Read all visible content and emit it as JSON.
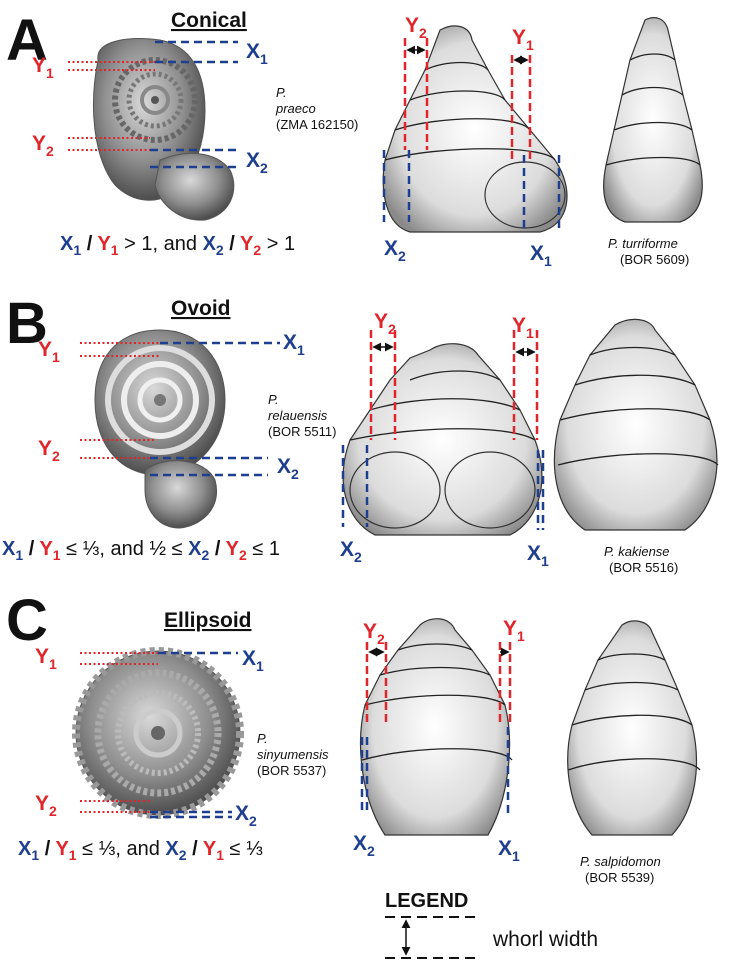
{
  "panels": [
    {
      "letter": "A",
      "title": "Conical",
      "formula": {
        "x1": "X",
        "s1": "1",
        "sep1": " / ",
        "y1": "Y",
        "s2": "1",
        "mid": " > 1, and ",
        "x2": "X",
        "s3": "2",
        "sep2": " / ",
        "y2": "Y",
        "s4": "2",
        "end": " > 1"
      },
      "species_left": {
        "genus": "P.",
        "epithet": "praeco",
        "code": "(ZMA 162150)"
      },
      "species_right": {
        "name": "P. turriforme",
        "code": "(BOR 5609)"
      }
    },
    {
      "letter": "B",
      "title": "Ovoid",
      "formula": {
        "x1": "X",
        "s1": "1",
        "sep1": " / ",
        "y1": "Y",
        "s2": "1",
        "mid": " ≤ ⅓, and ½ ≤ ",
        "x2": "X",
        "s3": "2",
        "sep2": " / ",
        "y2": "Y",
        "s4": "2",
        "end": " ≤ 1"
      },
      "species_left": {
        "genus": "P.",
        "epithet": "relauensis",
        "code": "(BOR 5511)"
      },
      "species_right": {
        "name": "P. kakiense",
        "code": "(BOR 5516)"
      }
    },
    {
      "letter": "C",
      "title": "Ellipsoid",
      "formula": {
        "x1": "X",
        "s1": "1",
        "sep1": " / ",
        "y1": "Y",
        "s2": "1",
        "mid": " ≤ ⅓, and ",
        "x2": "X",
        "s3": "2",
        "sep2": " / ",
        "y2": "Y",
        "s4": "1",
        "end": " ≤ ⅓"
      },
      "species_left": {
        "genus": "P.",
        "epithet": "sinyumensis",
        "code": "(BOR 5537)"
      },
      "species_right": {
        "name": "P. salpidomon",
        "code": "(BOR 5539)"
      }
    }
  ],
  "labels": {
    "x": "X",
    "y": "Y",
    "one": "1",
    "two": "2"
  },
  "legend": {
    "title": "LEGEND",
    "text": "whorl width"
  },
  "colors": {
    "x_blue": "#1e3f8f",
    "y_red": "#e0262b"
  }
}
